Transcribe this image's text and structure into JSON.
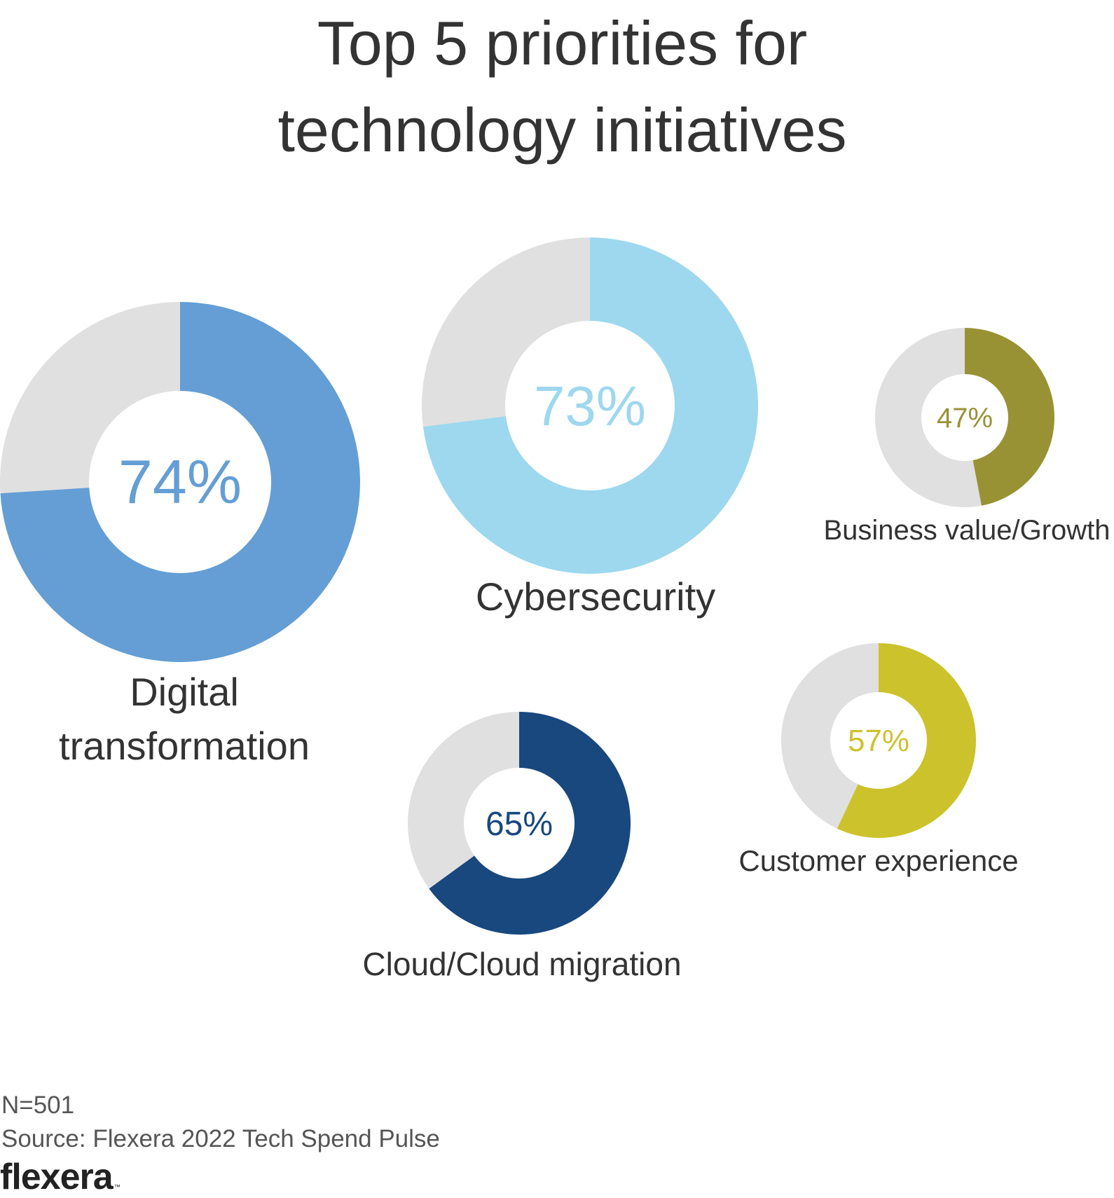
{
  "chart_data": {
    "type": "pie",
    "title_lines": [
      "Top 5 priorities for",
      "technology initiatives"
    ],
    "series": [
      {
        "name": "Digital transformation",
        "label_lines": [
          "Digital",
          "transformation"
        ],
        "value": 74,
        "value_label": "74%",
        "color": "#649ED5"
      },
      {
        "name": "Cybersecurity",
        "label_lines": [
          "Cybersecurity"
        ],
        "value": 73,
        "value_label": "73%",
        "color": "#9DD8EF"
      },
      {
        "name": "Business value/Growth",
        "label_lines": [
          "Business value/Growth"
        ],
        "value": 47,
        "value_label": "47%",
        "color": "#999234"
      },
      {
        "name": "Customer experience",
        "label_lines": [
          "Customer experience"
        ],
        "value": 57,
        "value_label": "57%",
        "color": "#CCC22C"
      },
      {
        "name": "Cloud/Cloud migration",
        "label_lines": [
          "Cloud/Cloud migration"
        ],
        "value": 65,
        "value_label": "65%",
        "color": "#18487E"
      }
    ],
    "remainder_color": "#E0E0E0",
    "unit": "%"
  },
  "footer": {
    "sample": "N=501",
    "source": "Source: Flexera 2022 Tech Spend Pulse"
  },
  "brand": {
    "logo_text": "flexera",
    "trademark": "™"
  }
}
